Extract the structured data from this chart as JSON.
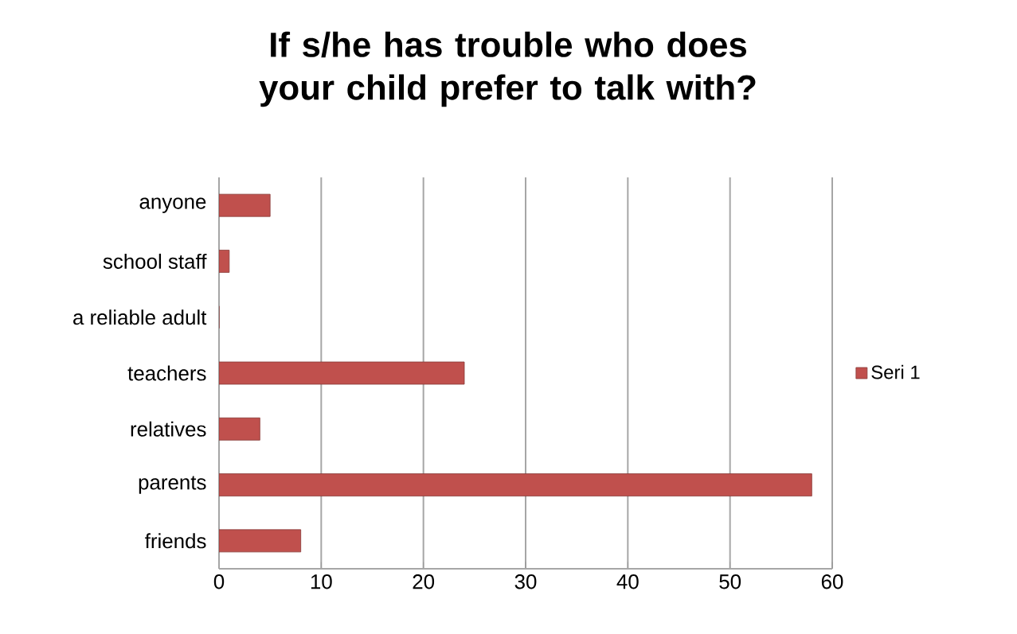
{
  "chart_data": {
    "type": "bar",
    "orientation": "horizontal",
    "title": "If s/he has trouble who does your child prefer to talk with?",
    "categories": [
      "anyone",
      "school staff",
      "a reliable adult",
      "teachers",
      "relatives",
      "parents",
      "friends"
    ],
    "series": [
      {
        "name": "Seri 1",
        "color": "#c0504d",
        "values": [
          5,
          1,
          0,
          24,
          4,
          58,
          8
        ]
      }
    ],
    "xlim": [
      0,
      60
    ],
    "xticks": [
      0,
      10,
      20,
      30,
      40,
      50,
      60
    ],
    "grid": "x",
    "legend": "right"
  }
}
